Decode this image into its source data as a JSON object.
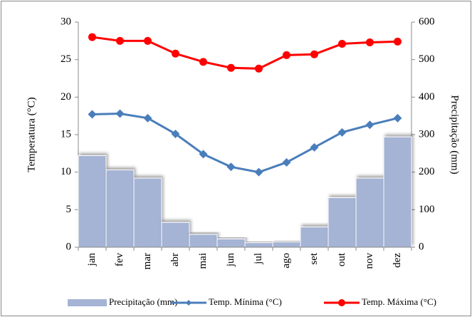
{
  "chart_data": {
    "type": "combo",
    "y_label": "Temperatura (°C)",
    "y2_label": "Precipitação (mm)",
    "categories": [
      "jan",
      "fev",
      "mar",
      "abr",
      "mai",
      "jun",
      "jul",
      "ago",
      "set",
      "out",
      "nov",
      "dez"
    ],
    "series": [
      {
        "name": "Precipitação (mm)",
        "type": "bar",
        "axis": "y2",
        "color": "#a5b3d4",
        "values": [
          244,
          206,
          184,
          66,
          34,
          22,
          12,
          14,
          54,
          132,
          184,
          294
        ]
      },
      {
        "name": "Temp. Mínima (°C)",
        "type": "line",
        "marker": "diamond",
        "color": "#4a7ebb",
        "values": [
          17.7,
          17.8,
          17.2,
          15.1,
          12.4,
          10.7,
          10.0,
          11.3,
          13.3,
          15.3,
          16.3,
          17.2
        ]
      },
      {
        "name": "Temp. Máxima (°C)",
        "type": "line",
        "marker": "circle",
        "color": "#ff0000",
        "values": [
          28.0,
          27.5,
          27.5,
          25.8,
          24.7,
          23.9,
          23.8,
          25.6,
          25.7,
          27.1,
          27.3,
          27.4
        ]
      }
    ],
    "ylim": [
      0,
      30
    ],
    "yticks": [
      0,
      5,
      10,
      15,
      20,
      25,
      30
    ],
    "y2lim": [
      0,
      600
    ],
    "y2ticks": [
      0,
      100,
      200,
      300,
      400,
      500,
      600
    ],
    "legend": "bottom"
  }
}
